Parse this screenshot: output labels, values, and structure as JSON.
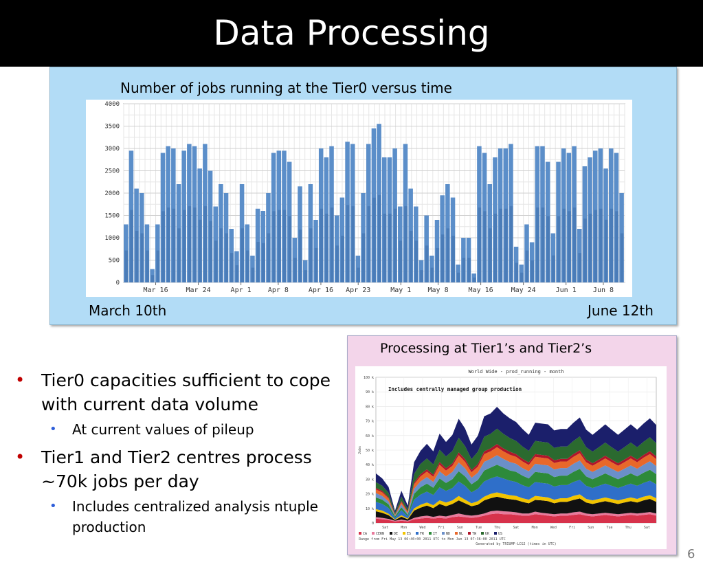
{
  "slide": {
    "title": "Data Processing",
    "page_number": "6",
    "tier0_panel": {
      "caption": "Number of jobs running at the Tier0 versus time",
      "start_label": "March 10th",
      "end_label": "June 12th"
    },
    "tier12_panel": {
      "caption": "Processing at Tier1’s and Tier2’s"
    },
    "bullets": [
      {
        "text": "Tier0 capacities sufficient to cope with current data volume",
        "sub": [
          "At current values of pileup"
        ]
      },
      {
        "text": "Tier1 and Tier2 centres process ~70k jobs per day",
        "sub": [
          "Includes centralized analysis ntuple production"
        ]
      }
    ]
  },
  "colors": {
    "title_bg": "#000000",
    "panel1_bg": "#b2dcf6",
    "panel2_bg": "#f3d5ea",
    "bullet_red": "#c00000",
    "bullet_blue": "#2e5ed9",
    "tier0_series": "#5b8ec9"
  },
  "chart_data": [
    {
      "type": "area",
      "title": "",
      "xlabel": "",
      "ylabel": "",
      "ylim": [
        0,
        4000
      ],
      "yticks": [
        0,
        500,
        1000,
        1500,
        2000,
        2500,
        3000,
        3500,
        4000
      ],
      "xtick_labels": [
        "Mar 16",
        "Mar 24",
        "Apr 1",
        "Apr 8",
        "Apr 16",
        "Apr 23",
        "May 1",
        "May 8",
        "May 16",
        "May 24",
        "Jun 1",
        "Jun 8"
      ],
      "grid": true,
      "x": [
        "Mar 10",
        "Mar 11",
        "Mar 12",
        "Mar 13",
        "Mar 14",
        "Mar 15",
        "Mar 16",
        "Mar 17",
        "Mar 18",
        "Mar 19",
        "Mar 20",
        "Mar 21",
        "Mar 22",
        "Mar 23",
        "Mar 24",
        "Mar 25",
        "Mar 26",
        "Mar 27",
        "Mar 28",
        "Mar 29",
        "Mar 30",
        "Mar 31",
        "Apr 1",
        "Apr 2",
        "Apr 3",
        "Apr 4",
        "Apr 5",
        "Apr 6",
        "Apr 7",
        "Apr 8",
        "Apr 9",
        "Apr 10",
        "Apr 11",
        "Apr 12",
        "Apr 13",
        "Apr 14",
        "Apr 15",
        "Apr 16",
        "Apr 17",
        "Apr 18",
        "Apr 19",
        "Apr 20",
        "Apr 21",
        "Apr 22",
        "Apr 23",
        "Apr 24",
        "Apr 25",
        "Apr 26",
        "Apr 27",
        "Apr 28",
        "Apr 29",
        "Apr 30",
        "May 1",
        "May 2",
        "May 3",
        "May 4",
        "May 5",
        "May 6",
        "May 7",
        "May 8",
        "May 9",
        "May 10",
        "May 11",
        "May 12",
        "May 13",
        "May 14",
        "May 15",
        "May 16",
        "May 17",
        "May 18",
        "May 19",
        "May 20",
        "May 21",
        "May 22",
        "May 23",
        "May 24",
        "May 25",
        "May 26",
        "May 27",
        "May 28",
        "May 29",
        "May 30",
        "May 31",
        "Jun 1",
        "Jun 2",
        "Jun 3",
        "Jun 4",
        "Jun 5",
        "Jun 6",
        "Jun 7",
        "Jun 8",
        "Jun 9",
        "Jun 10",
        "Jun 11",
        "Jun 12"
      ],
      "series": [
        {
          "values": [
            1300,
            2950,
            2100,
            2000,
            1300,
            300,
            1300,
            2900,
            3050,
            3000,
            2200,
            2950,
            3100,
            3050,
            2550,
            3100,
            2500,
            1700,
            2200,
            2000,
            1200,
            700,
            2200,
            1300,
            600,
            1650,
            1600,
            2000,
            2900,
            2950,
            2950,
            2700,
            1000,
            2150,
            500,
            2200,
            1400,
            3000,
            2800,
            3050,
            1500,
            1900,
            3150,
            3100,
            600,
            2000,
            3100,
            3450,
            3550,
            2800,
            2800,
            3000,
            1700,
            3100,
            2100,
            1700,
            500,
            1500,
            600,
            1400,
            1950,
            2200,
            1900,
            400,
            1000,
            1000,
            200,
            3050,
            2900,
            2200,
            2800,
            3000,
            3000,
            3100,
            800,
            400,
            1300,
            900,
            3050,
            3050,
            2700,
            1100,
            2700,
            3000,
            2900,
            3050,
            1200,
            2600,
            2800,
            2950,
            3000,
            2550,
            3000,
            2900,
            2000
          ]
        }
      ]
    },
    {
      "type": "area",
      "title": "World Wide - prod_running - month",
      "xlabel": "",
      "ylabel": "Jobs",
      "ylim": [
        0,
        100000
      ],
      "ytick_labels": [
        "0",
        "10 k",
        "20 k",
        "30 k",
        "40 k",
        "50 k",
        "60 k",
        "70 k",
        "80 k",
        "90 k",
        "100 k"
      ],
      "xtick_labels": [
        "Sat",
        "Mon",
        "Wed",
        "Fri",
        "Sun",
        "Tue",
        "Thu",
        "Sat",
        "Mon",
        "Wed",
        "Fri",
        "Sun",
        "Tue",
        "Thu",
        "Sat"
      ],
      "annotation": "Includes centrally managed group production",
      "footer": [
        "Range from Fri May 13 06:40:00 2011 UTC to Mon Jun 13 07:36:00 2011 UTC",
        "Generated by TRIUMF-LCG2 (times in UTC)"
      ],
      "legend_position": "bottom",
      "x": [
        "Sat 1",
        "Sat 2",
        "Sun",
        "Mon 1",
        "Mon 2",
        "Tue",
        "Wed 1",
        "Wed 2",
        "Thu",
        "Fri 1",
        "Fri 2",
        "Sat",
        "Sun 1",
        "Sun 2",
        "Mon",
        "Tue 1",
        "Tue 2",
        "Wed",
        "Thu 1",
        "Thu 2",
        "Fri",
        "Sat 1",
        "Sat 2",
        "Sun",
        "Mon 1",
        "Mon 2",
        "Tue",
        "Wed 1",
        "Wed 2",
        "Thu",
        "Fri 1",
        "Fri 2",
        "Sat",
        "Sun 1",
        "Sun 2",
        "Mon",
        "Tue 1",
        "Tue 2",
        "Wed",
        "Thu 1",
        "Thu 2",
        "Fri",
        "Sat 1",
        "Sat 2",
        "Sun"
      ],
      "series": [
        {
          "name": "CA",
          "color": "#d7324b",
          "values": [
            3000,
            2500,
            2000,
            1000,
            1500,
            1000,
            2500,
            3000,
            3500,
            3000,
            3500,
            3000,
            4000,
            4500,
            4000,
            3500,
            4000,
            5000,
            6000,
            6500,
            6000,
            6000,
            5500,
            5000,
            5000,
            6000,
            5500,
            5000,
            4500,
            5000,
            5000,
            5500,
            6000,
            5000,
            4500,
            5000,
            5500,
            5000,
            4500,
            5000,
            5500,
            5000,
            5500,
            6000,
            5000
          ]
        },
        {
          "name": "CERN",
          "color": "#e87a9c",
          "values": [
            1000,
            1000,
            800,
            500,
            800,
            500,
            1000,
            1500,
            1500,
            1200,
            1500,
            1500,
            1500,
            2000,
            1500,
            1500,
            1500,
            1500,
            2000,
            2000,
            2000,
            1800,
            1800,
            1500,
            1500,
            1800,
            1500,
            1500,
            1500,
            1500,
            1500,
            1800,
            1800,
            1500,
            1500,
            1500,
            1500,
            1500,
            1500,
            1500,
            1500,
            1500,
            1500,
            1500,
            1500
          ]
        },
        {
          "name": "DE",
          "color": "#111111",
          "values": [
            4000,
            3500,
            2500,
            500,
            2000,
            1000,
            5000,
            6000,
            7000,
            6000,
            8000,
            7000,
            7500,
            9000,
            8000,
            6500,
            7000,
            9000,
            9000,
            9500,
            9000,
            8500,
            8500,
            8000,
            7000,
            8000,
            8500,
            8500,
            7500,
            8000,
            8000,
            8500,
            9000,
            7500,
            7000,
            7500,
            8000,
            7500,
            7000,
            7500,
            8000,
            7500,
            8500,
            9000,
            8000
          ]
        },
        {
          "name": "ES",
          "color": "#f2c400",
          "values": [
            1500,
            1500,
            1000,
            500,
            1000,
            500,
            1500,
            2000,
            2000,
            2000,
            2500,
            2500,
            2500,
            3000,
            2500,
            2000,
            2500,
            2500,
            3000,
            3000,
            3000,
            2800,
            2800,
            2500,
            2500,
            2800,
            2500,
            2500,
            2500,
            2500,
            2500,
            2800,
            2800,
            2500,
            2500,
            2500,
            2500,
            2500,
            2500,
            2500,
            2500,
            2500,
            2500,
            2500,
            2500
          ]
        },
        {
          "name": "FR",
          "color": "#2f6fc9",
          "values": [
            5000,
            4500,
            4000,
            1000,
            3500,
            1500,
            6000,
            7000,
            7500,
            7000,
            9000,
            8000,
            8500,
            10000,
            9500,
            7500,
            8500,
            10500,
            10500,
            11000,
            10500,
            10000,
            9500,
            9000,
            8500,
            9500,
            9500,
            9500,
            9000,
            9000,
            9000,
            9500,
            10000,
            9000,
            8500,
            9000,
            9500,
            9000,
            8500,
            9000,
            9500,
            9000,
            9500,
            10000,
            9500
          ]
        },
        {
          "name": "IT",
          "color": "#2d8a3a",
          "values": [
            3000,
            3000,
            2500,
            1000,
            2000,
            1000,
            4000,
            5000,
            5500,
            5000,
            6000,
            5500,
            6000,
            7000,
            6500,
            5500,
            6000,
            7500,
            7500,
            8000,
            7500,
            7000,
            7000,
            6500,
            6000,
            7000,
            7000,
            7000,
            6500,
            6500,
            6500,
            7000,
            7500,
            6500,
            6000,
            6500,
            7000,
            6500,
            6000,
            6500,
            7000,
            6500,
            7000,
            7500,
            7000
          ]
        },
        {
          "name": "ND",
          "color": "#6b8fc9",
          "values": [
            3000,
            2500,
            2000,
            500,
            2000,
            1000,
            3500,
            4000,
            4500,
            4000,
            5000,
            4500,
            5000,
            6000,
            5500,
            4500,
            5000,
            6000,
            6000,
            6500,
            6000,
            5800,
            5500,
            5200,
            5000,
            5500,
            5500,
            5500,
            5200,
            5200,
            5200,
            5500,
            5800,
            5200,
            5000,
            5200,
            5500,
            5200,
            5000,
            5200,
            5500,
            5200,
            5500,
            5800,
            5500
          ]
        },
        {
          "name": "NL",
          "color": "#e8682a",
          "values": [
            2500,
            2500,
            2000,
            500,
            1500,
            1000,
            3000,
            3500,
            3800,
            3500,
            4500,
            4000,
            4200,
            5000,
            4500,
            3800,
            4200,
            5200,
            5200,
            5500,
            5200,
            5000,
            4800,
            4500,
            4300,
            4800,
            4800,
            4800,
            4500,
            4500,
            4500,
            4800,
            5000,
            4500,
            4300,
            4500,
            4800,
            4500,
            4300,
            4500,
            4800,
            4500,
            4800,
            5000,
            4800
          ]
        },
        {
          "name": "TW",
          "color": "#b0162a",
          "values": [
            1000,
            1000,
            800,
            300,
            800,
            400,
            1200,
            1500,
            1500,
            1500,
            1800,
            1600,
            1700,
            2000,
            1800,
            1500,
            1700,
            2000,
            2000,
            2200,
            2000,
            2000,
            1900,
            1800,
            1700,
            1900,
            1900,
            1900,
            1800,
            1800,
            1800,
            1900,
            2000,
            1800,
            1700,
            1800,
            1900,
            1800,
            1700,
            1800,
            1900,
            1800,
            1900,
            2000,
            1900
          ]
        },
        {
          "name": "UK",
          "color": "#2b6a2f",
          "values": [
            4000,
            3500,
            3000,
            1000,
            3000,
            1500,
            6000,
            7000,
            7500,
            7000,
            8500,
            8000,
            8500,
            10000,
            9000,
            7500,
            8500,
            10000,
            10000,
            10500,
            10000,
            9500,
            9000,
            8500,
            8000,
            9000,
            9000,
            9000,
            8500,
            8500,
            8500,
            9000,
            9500,
            8500,
            8000,
            8500,
            9000,
            8500,
            8000,
            8500,
            9000,
            8500,
            9000,
            9500,
            9000
          ]
        },
        {
          "name": "US",
          "color": "#1b1f6b",
          "values": [
            6000,
            5000,
            4000,
            1500,
            4000,
            2500,
            8000,
            9000,
            10000,
            9000,
            11000,
            10000,
            11000,
            13000,
            12000,
            10000,
            11000,
            14000,
            14000,
            15000,
            14000,
            13500,
            13000,
            12000,
            11000,
            12500,
            12500,
            12500,
            12000,
            12000,
            12000,
            12500,
            13000,
            12000,
            11500,
            12000,
            12500,
            12000,
            11500,
            12000,
            12500,
            12000,
            12500,
            13000,
            12500
          ]
        }
      ]
    }
  ]
}
